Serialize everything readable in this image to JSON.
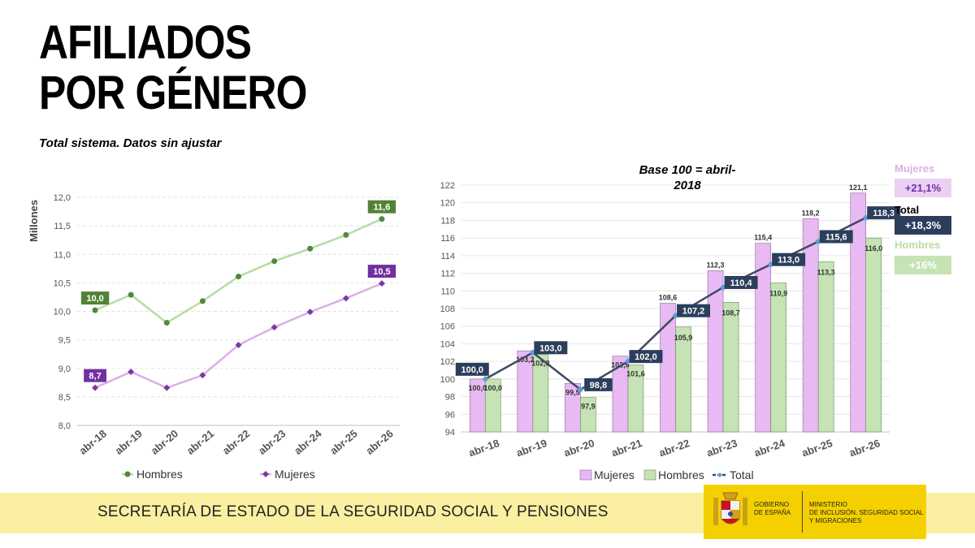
{
  "title": {
    "line1": "AFILIADOS",
    "line2": "POR GÉNERO"
  },
  "subtitle": "Total sistema. Datos sin ajustar",
  "footer": {
    "text": "SECRETARÍA DE ESTADO DE LA SEGURIDAD SOCIAL Y PENSIONES",
    "logo_left": [
      "GOBIERNO",
      "DE ESPAÑA"
    ],
    "logo_right": [
      "MINISTERIO",
      "DE INCLUSIÓN, SEGURIDAD SOCIAL",
      "Y MIGRACIONES"
    ]
  },
  "chart_data": [
    {
      "type": "line",
      "ylabel": "Millones",
      "ylim": [
        8.0,
        12.0
      ],
      "yticks": [
        "8,0",
        "8,5",
        "9,0",
        "9,5",
        "10,0",
        "10,5",
        "11,0",
        "11,5",
        "12,0"
      ],
      "categories": [
        "abr-18",
        "abr-19",
        "abr-20",
        "abr-21",
        "abr-22",
        "abr-23",
        "abr-24",
        "abr-25",
        "abr-26"
      ],
      "series": [
        {
          "name": "Hombres",
          "color": "#b7dca4",
          "marker": "#4e8a3a",
          "values": [
            10.02,
            10.29,
            9.8,
            10.18,
            10.61,
            10.88,
            11.1,
            11.34,
            11.62
          ],
          "first_label": "10,0",
          "last_label": "11,6",
          "label_color": "#548235"
        },
        {
          "name": "Mujeres",
          "color": "#dcaee8",
          "marker": "#7a3a9e",
          "values": [
            8.66,
            8.94,
            8.66,
            8.88,
            9.41,
            9.72,
            9.99,
            10.23,
            10.49
          ],
          "first_label": "8,7",
          "last_label": "10,5",
          "label_color": "#7030a0"
        }
      ],
      "legend": "bottom"
    },
    {
      "type": "bar",
      "title": "Base 100 = abril-2018",
      "title_lines": [
        "Base 100 = abril-",
        "2018"
      ],
      "ylim": [
        94,
        122
      ],
      "yticks": [
        "94",
        "96",
        "98",
        "100",
        "102",
        "104",
        "106",
        "108",
        "110",
        "112",
        "114",
        "116",
        "118",
        "120",
        "122"
      ],
      "categories": [
        "abr-18",
        "abr-19",
        "abr-20",
        "abr-21",
        "abr-22",
        "abr-23",
        "abr-24",
        "abr-25",
        "abr-26"
      ],
      "series": [
        {
          "name": "Mujeres",
          "type": "bar",
          "color": "#e8b9f2",
          "values": [
            100.0,
            103.2,
            99.5,
            102.6,
            108.6,
            112.3,
            115.4,
            118.2,
            121.1
          ],
          "labels": [
            "100,0",
            "103,2",
            "99,5",
            "102,6",
            "108,6",
            "112,3",
            "115,4",
            "118,2",
            "121,1"
          ]
        },
        {
          "name": "Hombres",
          "type": "bar",
          "color": "#c5e3b5",
          "values": [
            100.0,
            102.8,
            97.9,
            101.6,
            105.9,
            108.7,
            110.9,
            113.3,
            116.0
          ],
          "labels": [
            "100,0",
            "102,8",
            "97,9",
            "101,6",
            "105,9",
            "108,7",
            "110,9",
            "113,3",
            "116,0"
          ]
        },
        {
          "name": "Total",
          "type": "line",
          "color": "#3d4a63",
          "marker": "#5aa0d8",
          "values": [
            100.0,
            103.0,
            98.8,
            102.0,
            107.2,
            110.4,
            113.0,
            115.6,
            118.3
          ],
          "labels": [
            "100,0",
            "103,0",
            "98,8",
            "102,0",
            "107,2",
            "110,4",
            "113,0",
            "115,6",
            "118,3"
          ]
        }
      ],
      "legend": "bottom",
      "side_panel": [
        {
          "name": "Mujeres",
          "value": "+21,1%",
          "name_color": "#dcaee8",
          "box_color": "#ead0f3",
          "text_color": "#7030a0"
        },
        {
          "name": "Total",
          "value": "+18,3%",
          "name_color": "#000000",
          "box_color": "#2c3e5c",
          "text_color": "#ffffff"
        },
        {
          "name": "Hombres",
          "value": "+16%",
          "name_color": "#b7dca4",
          "box_color": "#c5e3b5",
          "text_color": "#ffffff"
        }
      ]
    }
  ]
}
